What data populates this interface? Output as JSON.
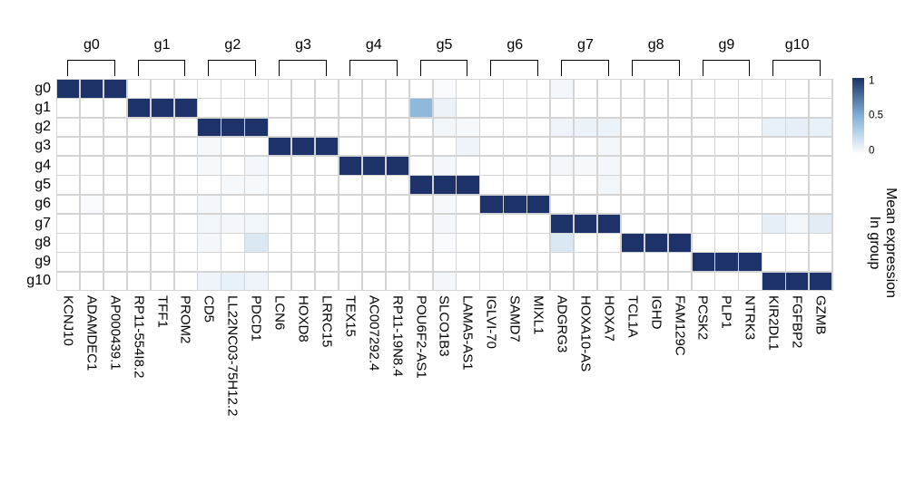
{
  "chart_data": {
    "type": "heatmap",
    "title": "",
    "rows": [
      "g0",
      "g1",
      "g2",
      "g3",
      "g4",
      "g5",
      "g6",
      "g7",
      "g8",
      "g9",
      "g10"
    ],
    "column_groups": [
      "g0",
      "g1",
      "g2",
      "g3",
      "g4",
      "g5",
      "g6",
      "g7",
      "g8",
      "g9",
      "g10"
    ],
    "columns_per_group": 3,
    "columns": [
      "KCNJ10",
      "ADAMDEC1",
      "AP000439.1",
      "RP11-554I8.2",
      "TFF1",
      "PROM2",
      "CD5",
      "LL22NC03-75H12.2",
      "PDCD1",
      "LCN6",
      "HOXD8",
      "LRRC15",
      "TEX15",
      "AC007292.4",
      "RP11-19N8.4",
      "POU6F2-AS1",
      "SLCO1B3",
      "LAMA5-AS1",
      "IGLVI-70",
      "SAMD7",
      "MIXL1",
      "ADGRG3",
      "HOXA10-AS",
      "HOXA7",
      "TCL1A",
      "IGHD",
      "FAM129C",
      "PCSK2",
      "PLP1",
      "NTRK3",
      "KIR2DL1",
      "FGFBP2",
      "GZMB"
    ],
    "values": [
      [
        1,
        1,
        1,
        0,
        0,
        0,
        0,
        0,
        0,
        0,
        0,
        0,
        0,
        0,
        0,
        0,
        0.03,
        0,
        0,
        0,
        0,
        0.05,
        0,
        0,
        0,
        0,
        0,
        0,
        0,
        0,
        0,
        0,
        0
      ],
      [
        0,
        0,
        0,
        1,
        1,
        1,
        0,
        0,
        0,
        0,
        0,
        0,
        0,
        0,
        0,
        0.45,
        0.08,
        0,
        0,
        0,
        0,
        0,
        0,
        0,
        0,
        0,
        0,
        0,
        0,
        0,
        0,
        0,
        0
      ],
      [
        0,
        0,
        0,
        0,
        0,
        0,
        1,
        1,
        1,
        0,
        0,
        0,
        0,
        0,
        0,
        0,
        0.06,
        0.04,
        0,
        0,
        0,
        0.07,
        0.08,
        0.08,
        0,
        0,
        0,
        0,
        0,
        0,
        0.09,
        0.1,
        0.09
      ],
      [
        0,
        0,
        0,
        0,
        0,
        0,
        0.04,
        0,
        0,
        1,
        1,
        1,
        0,
        0,
        0,
        0,
        0,
        0.07,
        0,
        0,
        0,
        0,
        0,
        0.05,
        0,
        0,
        0,
        0,
        0,
        0,
        0,
        0,
        0
      ],
      [
        0,
        0,
        0,
        0,
        0,
        0,
        0.04,
        0,
        0.05,
        0,
        0,
        0,
        1,
        1,
        1,
        0,
        0.05,
        0,
        0,
        0,
        0,
        0.05,
        0.04,
        0.05,
        0,
        0,
        0,
        0,
        0,
        0,
        0,
        0,
        0
      ],
      [
        0,
        0,
        0,
        0,
        0,
        0,
        0,
        0.04,
        0.04,
        0,
        0,
        0,
        0,
        0,
        0,
        1,
        1,
        1,
        0,
        0,
        0,
        0,
        0,
        0.06,
        0,
        0,
        0,
        0,
        0,
        0,
        0,
        0,
        0
      ],
      [
        0,
        0.03,
        0,
        0,
        0,
        0,
        0.05,
        0,
        0,
        0,
        0,
        0,
        0,
        0,
        0,
        0,
        0.04,
        0,
        1,
        1,
        1,
        0,
        0,
        0,
        0,
        0,
        0,
        0,
        0,
        0,
        0,
        0,
        0
      ],
      [
        0,
        0,
        0,
        0,
        0,
        0,
        0.06,
        0.05,
        0.06,
        0,
        0,
        0,
        0,
        0,
        0,
        0,
        0.05,
        0,
        0,
        0,
        0,
        1,
        1,
        1,
        0,
        0,
        0,
        0,
        0,
        0,
        0.1,
        0.06,
        0.12
      ],
      [
        0,
        0,
        0,
        0,
        0,
        0,
        0.05,
        0,
        0.15,
        0,
        0,
        0,
        0,
        0,
        0,
        0,
        0.03,
        0,
        0,
        0,
        0,
        0.15,
        0,
        0,
        1,
        1,
        1,
        0,
        0,
        0,
        0,
        0,
        0
      ],
      [
        0,
        0,
        0,
        0,
        0,
        0,
        0,
        0,
        0,
        0,
        0,
        0,
        0,
        0,
        0,
        0,
        0,
        0,
        0,
        0,
        0,
        0,
        0,
        0,
        0,
        0,
        0,
        1,
        1,
        1,
        0,
        0,
        0
      ],
      [
        0,
        0,
        0,
        0,
        0,
        0,
        0.07,
        0.09,
        0.07,
        0,
        0,
        0,
        0,
        0,
        0,
        0,
        0.05,
        0,
        0,
        0,
        0,
        0,
        0,
        0,
        0,
        0,
        0,
        0,
        0,
        0,
        1,
        1,
        1
      ]
    ],
    "value_range": [
      0,
      1
    ],
    "colorbar": {
      "label_lines": [
        "Mean expression",
        "In group"
      ],
      "ticks": [
        {
          "value": 1,
          "label": "1"
        },
        {
          "value": 0.5,
          "label": "0.5"
        },
        {
          "value": 0,
          "label": "0"
        }
      ],
      "cmap_stops": [
        {
          "t": 0,
          "color": "#ffffff"
        },
        {
          "t": 0.5,
          "color": "#82b1d7"
        },
        {
          "t": 1,
          "color": "#1d3268"
        }
      ]
    },
    "colors": {
      "grid_line": "#d4d4d4",
      "bracket": "#000000",
      "text": "#000000",
      "background": "#ffffff"
    },
    "layout_hints": {
      "grid": "on",
      "legend_position": "right",
      "column_labels_rotation_deg": 90
    }
  }
}
